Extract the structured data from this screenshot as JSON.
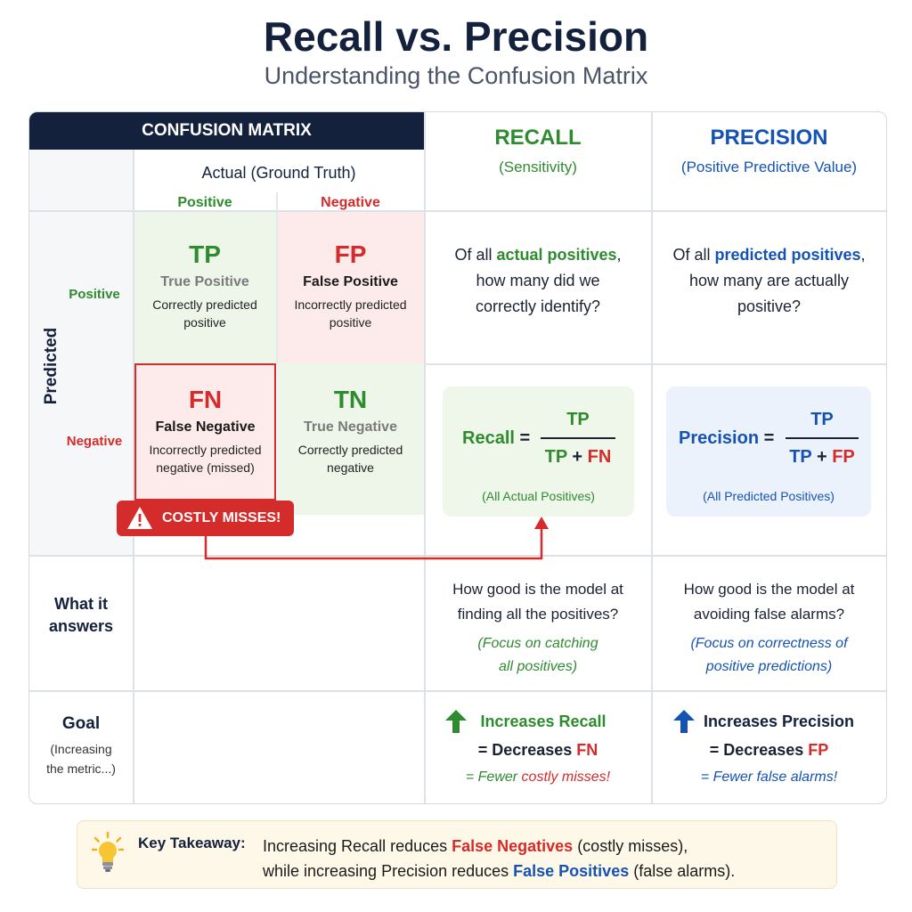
{
  "header": {
    "title": "Recall vs. Precision",
    "subtitle": "Understanding the Confusion Matrix"
  },
  "matrix": {
    "header": "CONFUSION MATRIX",
    "actual_label": "Actual (Ground Truth)",
    "actual_positive": "Positive",
    "actual_negative": "Negative",
    "predicted_label": "Predicted",
    "predicted_positive": "Positive",
    "predicted_negative": "Negative",
    "tp": {
      "abbr": "TP",
      "name": "True Positive",
      "desc1": "Correctly predicted",
      "desc2": "positive"
    },
    "fp": {
      "abbr": "FP",
      "name": "False Positive",
      "desc1": "Incorrectly predicted",
      "desc2": "positive"
    },
    "fn": {
      "abbr": "FN",
      "name": "False Negative",
      "desc1": "Incorrectly predicted",
      "desc2": "negative (missed)"
    },
    "tn": {
      "abbr": "TN",
      "name": "True Negative",
      "desc1": "Correctly predicted",
      "desc2": "negative"
    },
    "badge": "COSTLY MISSES!"
  },
  "recall": {
    "title": "RECALL",
    "subtitle": "(Sensitivity)",
    "q_line1_pre": "Of all ",
    "q_line1_em": "actual positives",
    "q_line1_post": ",",
    "q_line2": "how many did we",
    "q_line3": "correctly identify?",
    "formula_label": "Recall",
    "eq": "=",
    "numerator": "TP",
    "den_a": "TP",
    "plus": "+",
    "den_b": "FN",
    "formula_note": "(All Actual Positives)",
    "answers1": "How good is the model at",
    "answers2": "finding all the positives?",
    "focus1": "(Focus on catching",
    "focus2": "all positives)",
    "goal1": "Increases Recall",
    "goal2_pre": "= Decreases ",
    "goal2_em": "FN",
    "goal3_pre": "= Fewer ",
    "goal3_em": "costly misses!"
  },
  "precision": {
    "title": "PRECISION",
    "subtitle": "(Positive Predictive Value)",
    "q_line1_pre": "Of all ",
    "q_line1_em": "predicted positives",
    "q_line1_post": ",",
    "q_line2": "how many are actually",
    "q_line3": "positive?",
    "formula_label": "Precision",
    "eq": "=",
    "numerator": "TP",
    "den_a": "TP",
    "plus": "+",
    "den_b": "FP",
    "formula_note": "(All Predicted Positives)",
    "answers1": "How good is the model at",
    "answers2": "avoiding false alarms?",
    "focus1": "(Focus on correctness of",
    "focus2": "positive predictions)",
    "goal1": "Increases Precision",
    "goal2_pre": "= Decreases ",
    "goal2_em": "FP",
    "goal3": "= Fewer false alarms!"
  },
  "rows": {
    "what_label1": "What it",
    "what_label2": "answers",
    "goal_label": "Goal",
    "goal_sub1": "(Increasing",
    "goal_sub2": "the metric...)"
  },
  "takeaway": {
    "label": "Key Takeaway:",
    "line1_pre": "Increasing Recall reduces ",
    "line1_em": "False Negatives",
    "line1_post": " (costly misses),",
    "line2_pre": "while increasing Precision reduces ",
    "line2_em": "False Positives",
    "line2_post": " (false alarms)."
  },
  "icons": {
    "warning": "warning-triangle-icon",
    "arrow_up": "arrow-up-icon",
    "lightbulb": "lightbulb-icon"
  },
  "colors": {
    "navy": "#14213d",
    "green": "#2e8b2e",
    "red": "#d42b2b",
    "blue": "#1553b3",
    "tp_bg": "#eef6ea",
    "fp_bg": "#fcebea",
    "recall_box_bg": "#eef7e9",
    "precision_box_bg": "#ecf2fb"
  }
}
